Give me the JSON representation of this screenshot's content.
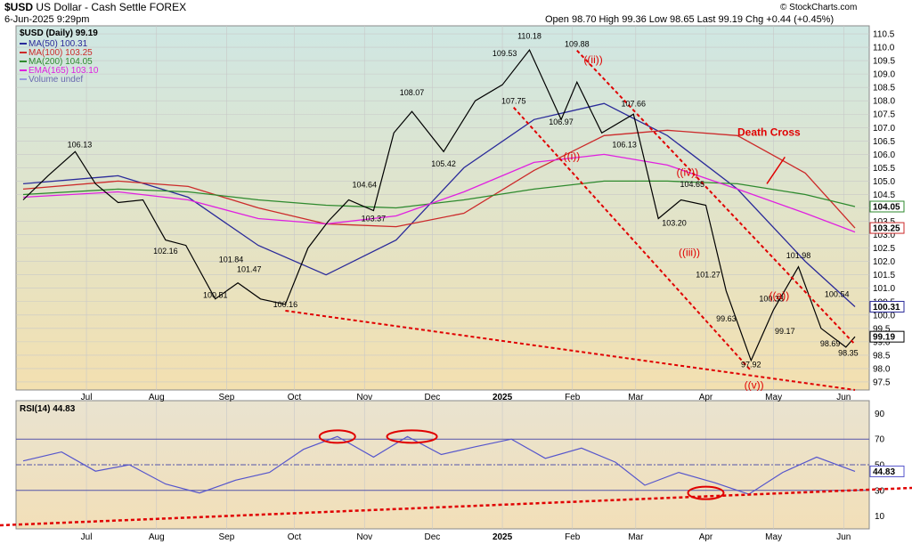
{
  "header": {
    "symbol_line": "$USD US Dollar - Cash Settle FOREX",
    "symbol": "$USD",
    "symbol_desc": "US Dollar - Cash Settle FOREX",
    "date_time": "6-Jun-2025 9:29pm",
    "ohlc": "Open 98.70  High 99.36  Low 98.65  Last 99.19  Chg +0.44 (+0.45%)",
    "watermark": "© StockCharts.com"
  },
  "colors": {
    "ma50": "#2a2a9a",
    "ma100": "#cc2a2a",
    "ma200": "#2e8a2e",
    "ema165": "#e020e0",
    "price": "#000000",
    "rsi": "#5555cc",
    "annotation": "#e00000"
  },
  "chart_data": [
    {
      "type": "line",
      "title": "$USD (Daily) 99.19",
      "legend": [
        {
          "label": "MA(50) 100.31",
          "color": "#2a2a9a"
        },
        {
          "label": "MA(100) 103.25",
          "color": "#cc2a2a"
        },
        {
          "label": "MA(200) 104.05",
          "color": "#2e8a2e"
        },
        {
          "label": "EMA(165) 103.10",
          "color": "#e020e0"
        },
        {
          "label": "Volume undef",
          "color": "#9999dd"
        }
      ],
      "legend_position": "top-left",
      "x_tick_labels": [
        "Jul",
        "Aug",
        "Sep",
        "Oct",
        "Nov",
        "Dec",
        "2025",
        "Feb",
        "Mar",
        "Apr",
        "May",
        "Jun"
      ],
      "x_tick_dates": [
        "2024-07-01",
        "2024-08-01",
        "2024-09-01",
        "2024-10-01",
        "2024-11-01",
        "2024-12-01",
        "2025-01-01",
        "2025-02-01",
        "2025-03-01",
        "2025-04-01",
        "2025-05-01",
        "2025-06-01"
      ],
      "x_range": [
        "2024-06-03",
        "2025-06-06"
      ],
      "ylim": [
        97.2,
        110.8
      ],
      "y_ticks": [
        97.5,
        98.0,
        98.5,
        99.0,
        99.5,
        100.0,
        100.5,
        101.0,
        101.5,
        102.0,
        102.5,
        103.0,
        103.5,
        104.0,
        104.5,
        105.0,
        105.5,
        106.0,
        106.5,
        107.0,
        107.5,
        108.0,
        108.5,
        109.0,
        109.5,
        110.0,
        110.5
      ],
      "grid": true,
      "series": [
        {
          "name": "$USD",
          "x": [
            "2024-06-03",
            "2024-06-14",
            "2024-06-26",
            "2024-07-05",
            "2024-07-15",
            "2024-07-26",
            "2024-08-05",
            "2024-08-14",
            "2024-08-27",
            "2024-09-06",
            "2024-09-16",
            "2024-09-27",
            "2024-10-07",
            "2024-10-16",
            "2024-10-25",
            "2024-11-05",
            "2024-11-14",
            "2024-11-22",
            "2024-12-06",
            "2024-12-20",
            "2025-01-01",
            "2025-01-13",
            "2025-01-27",
            "2025-02-03",
            "2025-02-14",
            "2025-02-28",
            "2025-03-11",
            "2025-03-21",
            "2025-04-01",
            "2025-04-10",
            "2025-04-21",
            "2025-05-01",
            "2025-05-12",
            "2025-05-22",
            "2025-06-02",
            "2025-06-06"
          ],
          "values": [
            104.3,
            105.2,
            106.1,
            104.9,
            104.2,
            104.3,
            102.8,
            102.6,
            100.6,
            101.2,
            100.6,
            100.4,
            102.5,
            103.5,
            104.3,
            103.9,
            106.8,
            107.6,
            106.1,
            108.0,
            108.6,
            109.9,
            107.3,
            108.7,
            106.8,
            107.5,
            103.6,
            104.3,
            104.1,
            100.9,
            98.3,
            100.2,
            101.8,
            99.5,
            98.8,
            99.19
          ]
        },
        {
          "name": "MA(50)",
          "x": [
            "2024-06-03",
            "2024-07-15",
            "2024-08-15",
            "2024-09-15",
            "2024-10-15",
            "2024-11-15",
            "2024-12-15",
            "2025-01-15",
            "2025-02-15",
            "2025-03-15",
            "2025-04-15",
            "2025-05-15",
            "2025-06-06"
          ],
          "values": [
            104.9,
            105.2,
            104.4,
            102.6,
            101.5,
            102.8,
            105.5,
            107.3,
            107.9,
            106.7,
            104.7,
            102.0,
            100.31
          ]
        },
        {
          "name": "MA(100)",
          "x": [
            "2024-06-03",
            "2024-07-15",
            "2024-08-15",
            "2024-09-15",
            "2024-10-15",
            "2024-11-15",
            "2024-12-15",
            "2025-01-15",
            "2025-02-15",
            "2025-03-15",
            "2025-04-15",
            "2025-05-15",
            "2025-06-06"
          ],
          "values": [
            104.7,
            105.0,
            104.8,
            104.0,
            103.4,
            103.3,
            103.8,
            105.4,
            106.7,
            106.9,
            106.7,
            105.3,
            103.25
          ]
        },
        {
          "name": "MA(200)",
          "x": [
            "2024-06-03",
            "2024-07-15",
            "2024-08-15",
            "2024-09-15",
            "2024-10-15",
            "2024-11-15",
            "2024-12-15",
            "2025-01-15",
            "2025-02-15",
            "2025-03-15",
            "2025-04-15",
            "2025-05-15",
            "2025-06-06"
          ],
          "values": [
            104.5,
            104.7,
            104.6,
            104.3,
            104.1,
            104.0,
            104.3,
            104.7,
            105.0,
            105.0,
            104.9,
            104.5,
            104.05
          ]
        },
        {
          "name": "EMA(165)",
          "x": [
            "2024-06-03",
            "2024-07-15",
            "2024-08-15",
            "2024-09-15",
            "2024-10-15",
            "2024-11-15",
            "2024-12-15",
            "2025-01-15",
            "2025-02-15",
            "2025-03-15",
            "2025-04-15",
            "2025-05-15",
            "2025-06-06"
          ],
          "values": [
            104.4,
            104.6,
            104.3,
            103.6,
            103.4,
            103.7,
            104.6,
            105.7,
            106.0,
            105.6,
            104.7,
            103.8,
            103.1
          ]
        }
      ],
      "price_labels": [
        {
          "text": "106.13",
          "x": "2024-06-28",
          "y": 106.13
        },
        {
          "text": "102.16",
          "x": "2024-08-05",
          "y": 102.16
        },
        {
          "text": "100.51",
          "x": "2024-08-27",
          "y": 100.51
        },
        {
          "text": "101.84",
          "x": "2024-09-03",
          "y": 101.84
        },
        {
          "text": "101.47",
          "x": "2024-09-11",
          "y": 101.47
        },
        {
          "text": "100.16",
          "x": "2024-09-27",
          "y": 100.16
        },
        {
          "text": "104.64",
          "x": "2024-11-01",
          "y": 104.64
        },
        {
          "text": "103.37",
          "x": "2024-11-05",
          "y": 103.37
        },
        {
          "text": "108.07",
          "x": "2024-11-22",
          "y": 108.07
        },
        {
          "text": "105.42",
          "x": "2024-12-06",
          "y": 105.42
        },
        {
          "text": "109.53",
          "x": "2025-01-02",
          "y": 109.53
        },
        {
          "text": "110.18",
          "x": "2025-01-13",
          "y": 110.18
        },
        {
          "text": "107.75",
          "x": "2025-01-06",
          "y": 107.75
        },
        {
          "text": "109.88",
          "x": "2025-02-03",
          "y": 109.88
        },
        {
          "text": "106.97",
          "x": "2025-01-27",
          "y": 106.97
        },
        {
          "text": "107.66",
          "x": "2025-02-28",
          "y": 107.66
        },
        {
          "text": "106.13",
          "x": "2025-02-24",
          "y": 106.13
        },
        {
          "text": "104.65",
          "x": "2025-03-26",
          "y": 104.65
        },
        {
          "text": "103.20",
          "x": "2025-03-18",
          "y": 103.2
        },
        {
          "text": "101.27",
          "x": "2025-04-02",
          "y": 101.27
        },
        {
          "text": "99.63",
          "x": "2025-04-10",
          "y": 99.63
        },
        {
          "text": "97.92",
          "x": "2025-04-21",
          "y": 97.92
        },
        {
          "text": "100.38",
          "x": "2025-04-30",
          "y": 100.38
        },
        {
          "text": "99.17",
          "x": "2025-05-06",
          "y": 99.17
        },
        {
          "text": "101.98",
          "x": "2025-05-12",
          "y": 101.98
        },
        {
          "text": "100.54",
          "x": "2025-05-29",
          "y": 100.54
        },
        {
          "text": "98.69",
          "x": "2025-05-26",
          "y": 98.69
        },
        {
          "text": "98.35",
          "x": "2025-06-03",
          "y": 98.35
        }
      ],
      "axis_value_tags": [
        {
          "text": "104.05",
          "y": 104.05,
          "color": "#2e8a2e"
        },
        {
          "text": "103.25",
          "y": 103.25,
          "color": "#cc2a2a"
        },
        {
          "text": "100.31",
          "y": 100.31,
          "color": "#2a2a9a"
        },
        {
          "text": "99.19",
          "y": 99.19,
          "color": "#000000"
        }
      ],
      "annotations": [
        {
          "text": "((ii))",
          "x": "2025-02-06",
          "y": 109.4
        },
        {
          "text": "((i))",
          "x": "2025-01-28",
          "y": 105.8
        },
        {
          "text": "((iv))",
          "x": "2025-03-19",
          "y": 105.2
        },
        {
          "text": "((iii))",
          "x": "2025-03-20",
          "y": 102.2
        },
        {
          "text": "((a))",
          "x": "2025-04-29",
          "y": 100.6
        },
        {
          "text": "((v))",
          "x": "2025-04-18",
          "y": 97.25
        },
        {
          "text": "Death Cross",
          "x": "2025-04-15",
          "y": 106.7
        }
      ]
    },
    {
      "type": "line",
      "title": "RSI(14) 44.83",
      "ylim": [
        0,
        100
      ],
      "y_ticks": [
        10,
        30,
        50,
        70,
        90
      ],
      "reference_lines": [
        70,
        50,
        30
      ],
      "axis_value_tag": "44.83",
      "series": [
        {
          "name": "RSI(14)",
          "x": [
            "2024-06-03",
            "2024-06-20",
            "2024-07-05",
            "2024-07-20",
            "2024-08-05",
            "2024-08-20",
            "2024-09-05",
            "2024-09-20",
            "2024-10-05",
            "2024-10-20",
            "2024-11-05",
            "2024-11-20",
            "2024-12-05",
            "2024-12-20",
            "2025-01-05",
            "2025-01-20",
            "2025-02-05",
            "2025-02-20",
            "2025-03-05",
            "2025-03-20",
            "2025-04-05",
            "2025-04-20",
            "2025-05-05",
            "2025-05-20",
            "2025-06-06"
          ],
          "values": [
            53,
            60,
            45,
            50,
            35,
            28,
            38,
            44,
            62,
            72,
            56,
            72,
            58,
            64,
            70,
            55,
            63,
            52,
            34,
            44,
            36,
            27,
            44,
            56,
            44.83
          ]
        }
      ]
    }
  ]
}
